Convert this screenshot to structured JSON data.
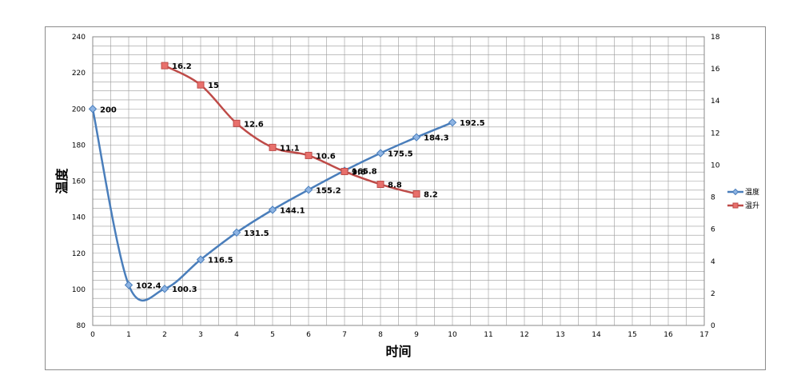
{
  "chart_data": {
    "type": "line",
    "title": "",
    "xlabel": "时间",
    "ylabel": "温度",
    "y2label": "",
    "xlim": [
      0,
      17
    ],
    "ylim": [
      80,
      240
    ],
    "y2lim": [
      0,
      18
    ],
    "x_ticks": [
      "0",
      "1",
      "2",
      "3",
      "4",
      "5",
      "6",
      "7",
      "8",
      "9",
      "10",
      "11",
      "12",
      "13",
      "14",
      "15",
      "16",
      "17"
    ],
    "y_ticks": [
      "80",
      "100",
      "120",
      "140",
      "160",
      "180",
      "200",
      "220",
      "240"
    ],
    "y2_ticks": [
      "0",
      "2",
      "4",
      "6",
      "8",
      "10",
      "12",
      "14",
      "16",
      "18"
    ],
    "grid": true,
    "legend_position": "right",
    "series": [
      {
        "name": "温度",
        "axis": "left",
        "color": "#4a7ebb",
        "marker": "diamond",
        "x": [
          0,
          1,
          2,
          3,
          4,
          5,
          6,
          7,
          8,
          9,
          10
        ],
        "values": [
          200,
          102.4,
          100.3,
          116.5,
          131.5,
          144.1,
          155.2,
          165.8,
          175.5,
          184.3,
          192.5
        ],
        "labels": [
          "200",
          "102.4",
          "100.3",
          "116.5",
          "131.5",
          "144.1",
          "155.2",
          "165.8",
          "175.5",
          "184.3",
          "192.5"
        ]
      },
      {
        "name": "温升",
        "axis": "right",
        "color": "#be4b48",
        "marker": "square",
        "x": [
          2,
          3,
          4,
          5,
          6,
          7,
          8,
          9
        ],
        "values": [
          16.2,
          15,
          12.6,
          11.1,
          10.6,
          9.6,
          8.8,
          8.2
        ],
        "labels": [
          "16.2",
          "15",
          "12.6",
          "11.1",
          "10.6",
          "9.6",
          "8.8",
          "8.2"
        ]
      }
    ]
  }
}
